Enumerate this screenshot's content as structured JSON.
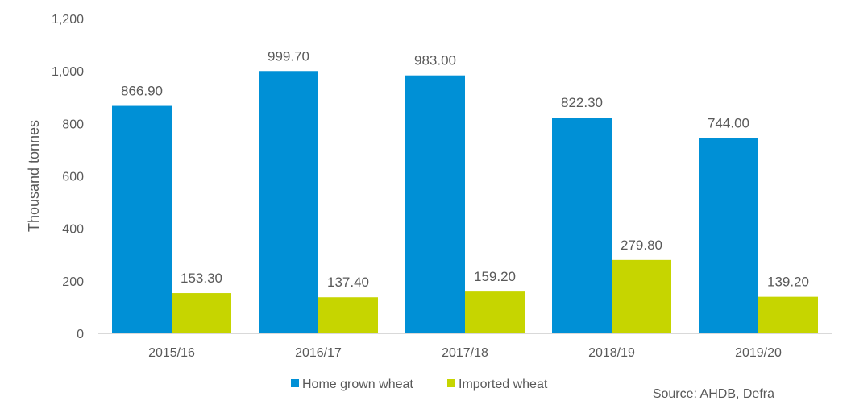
{
  "chart_data": {
    "type": "bar",
    "categories": [
      "2015/16",
      "2016/17",
      "2017/18",
      "2018/19",
      "2019/20"
    ],
    "series": [
      {
        "name": "Home grown wheat",
        "values": [
          866.9,
          999.7,
          983.0,
          822.3,
          744.0
        ],
        "labels": [
          "866.90",
          "999.70",
          "983.00",
          "822.30",
          "744.00"
        ],
        "color": "#0090D6"
      },
      {
        "name": "Imported wheat",
        "values": [
          153.3,
          137.4,
          159.2,
          279.8,
          139.2
        ],
        "labels": [
          "153.30",
          "137.40",
          "159.20",
          "279.80",
          "139.20"
        ],
        "color": "#C6D500"
      }
    ],
    "ylabel": "Thousand tonnes",
    "ylim": [
      0,
      1200
    ],
    "yticks": [
      0,
      200,
      400,
      600,
      800,
      1000,
      1200
    ],
    "ytick_labels": [
      "0",
      "200",
      "400",
      "600",
      "800",
      "1,000",
      "1,200"
    ],
    "grid": false,
    "legend_position": "bottom"
  },
  "source": "Source: AHDB, Defra"
}
